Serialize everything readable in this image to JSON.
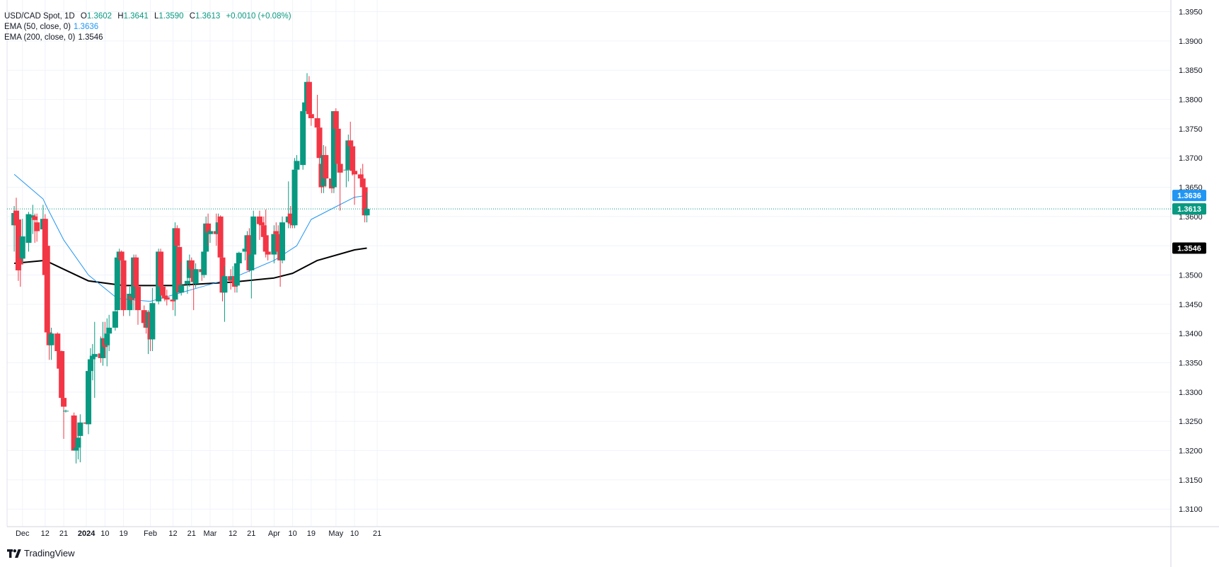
{
  "legend": {
    "symbol": "USD/CAD Spot, 1D",
    "open_label": "O",
    "open": "1.3602",
    "high_label": "H",
    "high": "1.3641",
    "low_label": "L",
    "low": "1.3590",
    "close_label": "C",
    "close": "1.3613",
    "change": "+0.0010 (+0.08%)",
    "ema50_label": "EMA (50, close, 0)",
    "ema50_value": "1.3636",
    "ema200_label": "EMA (200, close, 0)",
    "ema200_value": "1.3546"
  },
  "brand": {
    "name": "TradingView"
  },
  "colors": {
    "up": "#089981",
    "down": "#f23645",
    "ema50": "#2196f3",
    "ema200": "#000000",
    "grid": "#f0f3fa",
    "text": "#131722",
    "last_price_line": "#089981"
  },
  "chart_data": {
    "type": "candlestick",
    "symbol": "USD/CAD Spot",
    "interval": "1D",
    "ylim": [
      1.307,
      1.397
    ],
    "y_ticks": [
      "1.3100",
      "1.3150",
      "1.3200",
      "1.3250",
      "1.3300",
      "1.3350",
      "1.3400",
      "1.3450",
      "1.3500",
      "1.3550",
      "1.3600",
      "1.3650",
      "1.3700",
      "1.3750",
      "1.3800",
      "1.3850",
      "1.3900",
      "1.3950"
    ],
    "x_ticks": [
      {
        "label": "Dec",
        "date": "2023-12-01"
      },
      {
        "label": "12",
        "date": "2023-12-12"
      },
      {
        "label": "21",
        "date": "2023-12-21"
      },
      {
        "label": "2024",
        "date": "2024-01-01",
        "bold": true
      },
      {
        "label": "10",
        "date": "2024-01-10"
      },
      {
        "label": "19",
        "date": "2024-01-19"
      },
      {
        "label": "Feb",
        "date": "2024-02-01"
      },
      {
        "label": "12",
        "date": "2024-02-12"
      },
      {
        "label": "21",
        "date": "2024-02-21"
      },
      {
        "label": "Mar",
        "date": "2024-03-01"
      },
      {
        "label": "12",
        "date": "2024-03-12"
      },
      {
        "label": "21",
        "date": "2024-03-21"
      },
      {
        "label": "Apr",
        "date": "2024-04-01"
      },
      {
        "label": "10",
        "date": "2024-04-10"
      },
      {
        "label": "19",
        "date": "2024-04-19"
      },
      {
        "label": "May",
        "date": "2024-05-01"
      },
      {
        "label": "10",
        "date": "2024-05-10"
      },
      {
        "label": "21",
        "date": "2024-05-21"
      }
    ],
    "price_badges": [
      {
        "label": "1.3636",
        "value": 1.3636,
        "color": "#2196f3"
      },
      {
        "label": "1.3613",
        "value": 1.3613,
        "color": "#089981"
      },
      {
        "label": "1.3546",
        "value": 1.3546,
        "color": "#000000"
      }
    ],
    "last_price": 1.3613,
    "candles": [
      {
        "d": "2023-11-27",
        "o": 1.3585,
        "h": 1.3618,
        "l": 1.354,
        "c": 1.3606
      },
      {
        "d": "2023-11-28",
        "o": 1.361,
        "h": 1.3632,
        "l": 1.3555,
        "c": 1.3585
      },
      {
        "d": "2023-11-29",
        "o": 1.3595,
        "h": 1.3601,
        "l": 1.349,
        "c": 1.3508
      },
      {
        "d": "2023-11-30",
        "o": 1.3545,
        "h": 1.356,
        "l": 1.348,
        "c": 1.3518
      },
      {
        "d": "2023-12-01",
        "o": 1.3528,
        "h": 1.3596,
        "l": 1.352,
        "c": 1.3566
      },
      {
        "d": "2023-12-04",
        "o": 1.3555,
        "h": 1.3608,
        "l": 1.354,
        "c": 1.3604
      },
      {
        "d": "2023-12-05",
        "o": 1.36,
        "h": 1.3601,
        "l": 1.3598,
        "c": 1.36
      },
      {
        "d": "2023-12-06",
        "o": 1.3598,
        "h": 1.362,
        "l": 1.357,
        "c": 1.3602
      },
      {
        "d": "2023-12-07",
        "o": 1.36,
        "h": 1.3605,
        "l": 1.3555,
        "c": 1.3594
      },
      {
        "d": "2023-12-08",
        "o": 1.359,
        "h": 1.3605,
        "l": 1.3557,
        "c": 1.3575
      },
      {
        "d": "2023-12-11",
        "o": 1.3578,
        "h": 1.362,
        "l": 1.3565,
        "c": 1.3596
      },
      {
        "d": "2023-12-12",
        "o": 1.3596,
        "h": 1.3604,
        "l": 1.35,
        "c": 1.35
      },
      {
        "d": "2023-12-13",
        "o": 1.355,
        "h": 1.3555,
        "l": 1.339,
        "c": 1.3402
      },
      {
        "d": "2023-12-14",
        "o": 1.3402,
        "h": 1.3415,
        "l": 1.3355,
        "c": 1.338
      },
      {
        "d": "2023-12-15",
        "o": 1.338,
        "h": 1.341,
        "l": 1.3355,
        "c": 1.34
      },
      {
        "d": "2023-12-18",
        "o": 1.34,
        "h": 1.3402,
        "l": 1.3345,
        "c": 1.337
      },
      {
        "d": "2023-12-19",
        "o": 1.337,
        "h": 1.3375,
        "l": 1.333,
        "c": 1.334
      },
      {
        "d": "2023-12-20",
        "o": 1.337,
        "h": 1.3371,
        "l": 1.328,
        "c": 1.329
      },
      {
        "d": "2023-12-21",
        "o": 1.329,
        "h": 1.3295,
        "l": 1.322,
        "c": 1.3275
      },
      {
        "d": "2023-12-22",
        "o": 1.3268,
        "h": 1.327,
        "l": 1.3265,
        "c": 1.3268
      },
      {
        "d": "2023-12-26",
        "o": 1.326,
        "h": 1.3265,
        "l": 1.32,
        "c": 1.32
      },
      {
        "d": "2023-12-27",
        "o": 1.32,
        "h": 1.3215,
        "l": 1.3178,
        "c": 1.3205
      },
      {
        "d": "2023-12-28",
        "o": 1.3205,
        "h": 1.323,
        "l": 1.3185,
        "c": 1.3222
      },
      {
        "d": "2023-12-29",
        "o": 1.3225,
        "h": 1.3262,
        "l": 1.318,
        "c": 1.3248
      },
      {
        "d": "2024-01-01",
        "o": 1.3248,
        "h": 1.325,
        "l": 1.3245,
        "c": 1.3246
      },
      {
        "d": "2024-01-02",
        "o": 1.3245,
        "h": 1.334,
        "l": 1.3228,
        "c": 1.3336
      },
      {
        "d": "2024-01-03",
        "o": 1.3336,
        "h": 1.3375,
        "l": 1.332,
        "c": 1.3356
      },
      {
        "d": "2024-01-04",
        "o": 1.3356,
        "h": 1.3382,
        "l": 1.332,
        "c": 1.3362
      },
      {
        "d": "2024-01-05",
        "o": 1.336,
        "h": 1.342,
        "l": 1.329,
        "c": 1.3365
      },
      {
        "d": "2024-01-08",
        "o": 1.3366,
        "h": 1.3395,
        "l": 1.335,
        "c": 1.3358
      },
      {
        "d": "2024-01-09",
        "o": 1.3358,
        "h": 1.342,
        "l": 1.3345,
        "c": 1.3392
      },
      {
        "d": "2024-01-10",
        "o": 1.3392,
        "h": 1.342,
        "l": 1.336,
        "c": 1.3377
      },
      {
        "d": "2024-01-11",
        "o": 1.338,
        "h": 1.3426,
        "l": 1.3344,
        "c": 1.34
      },
      {
        "d": "2024-01-12",
        "o": 1.34,
        "h": 1.3432,
        "l": 1.337,
        "c": 1.341
      },
      {
        "d": "2024-01-15",
        "o": 1.341,
        "h": 1.3455,
        "l": 1.3405,
        "c": 1.3438
      },
      {
        "d": "2024-01-16",
        "o": 1.344,
        "h": 1.354,
        "l": 1.343,
        "c": 1.353
      },
      {
        "d": "2024-01-17",
        "o": 1.353,
        "h": 1.3545,
        "l": 1.3495,
        "c": 1.354
      },
      {
        "d": "2024-01-18",
        "o": 1.354,
        "h": 1.3542,
        "l": 1.349,
        "c": 1.3525
      },
      {
        "d": "2024-01-19",
        "o": 1.3525,
        "h": 1.3538,
        "l": 1.343,
        "c": 1.344
      },
      {
        "d": "2024-01-22",
        "o": 1.344,
        "h": 1.348,
        "l": 1.343,
        "c": 1.3468
      },
      {
        "d": "2024-01-23",
        "o": 1.3465,
        "h": 1.3488,
        "l": 1.345,
        "c": 1.3458
      },
      {
        "d": "2024-01-24",
        "o": 1.346,
        "h": 1.3535,
        "l": 1.344,
        "c": 1.353
      },
      {
        "d": "2024-01-25",
        "o": 1.353,
        "h": 1.3535,
        "l": 1.3465,
        "c": 1.348
      },
      {
        "d": "2024-01-26",
        "o": 1.348,
        "h": 1.3485,
        "l": 1.3415,
        "c": 1.344
      },
      {
        "d": "2024-01-29",
        "o": 1.344,
        "h": 1.3448,
        "l": 1.341,
        "c": 1.3418
      },
      {
        "d": "2024-01-30",
        "o": 1.3418,
        "h": 1.342,
        "l": 1.34,
        "c": 1.341
      },
      {
        "d": "2024-01-31",
        "o": 1.341,
        "h": 1.344,
        "l": 1.3365,
        "c": 1.3437
      },
      {
        "d": "2024-02-01",
        "o": 1.3437,
        "h": 1.3442,
        "l": 1.337,
        "c": 1.339
      },
      {
        "d": "2024-02-02",
        "o": 1.339,
        "h": 1.3478,
        "l": 1.337,
        "c": 1.3452
      },
      {
        "d": "2024-02-05",
        "o": 1.3455,
        "h": 1.3545,
        "l": 1.345,
        "c": 1.354
      },
      {
        "d": "2024-02-06",
        "o": 1.354,
        "h": 1.3545,
        "l": 1.3465,
        "c": 1.348
      },
      {
        "d": "2024-02-07",
        "o": 1.348,
        "h": 1.3485,
        "l": 1.346,
        "c": 1.3465
      },
      {
        "d": "2024-02-08",
        "o": 1.3465,
        "h": 1.348,
        "l": 1.3455,
        "c": 1.346
      },
      {
        "d": "2024-02-09",
        "o": 1.3462,
        "h": 1.3475,
        "l": 1.3448,
        "c": 1.3458
      },
      {
        "d": "2024-02-12",
        "o": 1.3458,
        "h": 1.347,
        "l": 1.344,
        "c": 1.3455
      },
      {
        "d": "2024-02-13",
        "o": 1.3458,
        "h": 1.359,
        "l": 1.343,
        "c": 1.358
      },
      {
        "d": "2024-02-14",
        "o": 1.358,
        "h": 1.3585,
        "l": 1.3525,
        "c": 1.355
      },
      {
        "d": "2024-02-15",
        "o": 1.3548,
        "h": 1.3552,
        "l": 1.347,
        "c": 1.347
      },
      {
        "d": "2024-02-16",
        "o": 1.347,
        "h": 1.3522,
        "l": 1.3465,
        "c": 1.3483
      },
      {
        "d": "2024-02-19",
        "o": 1.3485,
        "h": 1.3505,
        "l": 1.3468,
        "c": 1.349
      },
      {
        "d": "2024-02-20",
        "o": 1.3495,
        "h": 1.3535,
        "l": 1.348,
        "c": 1.3525
      },
      {
        "d": "2024-02-21",
        "o": 1.3525,
        "h": 1.353,
        "l": 1.3495,
        "c": 1.351
      },
      {
        "d": "2024-02-22",
        "o": 1.351,
        "h": 1.3525,
        "l": 1.344,
        "c": 1.3488
      },
      {
        "d": "2024-02-23",
        "o": 1.3485,
        "h": 1.352,
        "l": 1.3478,
        "c": 1.351
      },
      {
        "d": "2024-02-26",
        "o": 1.351,
        "h": 1.3512,
        "l": 1.349,
        "c": 1.3505
      },
      {
        "d": "2024-02-27",
        "o": 1.35,
        "h": 1.3545,
        "l": 1.3495,
        "c": 1.354
      },
      {
        "d": "2024-02-28",
        "o": 1.354,
        "h": 1.36,
        "l": 1.3535,
        "c": 1.3588
      },
      {
        "d": "2024-02-29",
        "o": 1.3588,
        "h": 1.3605,
        "l": 1.355,
        "c": 1.3572
      },
      {
        "d": "2024-03-01",
        "o": 1.357,
        "h": 1.358,
        "l": 1.3555,
        "c": 1.3575
      },
      {
        "d": "2024-03-04",
        "o": 1.3575,
        "h": 1.3605,
        "l": 1.355,
        "c": 1.357
      },
      {
        "d": "2024-03-05",
        "o": 1.357,
        "h": 1.3605,
        "l": 1.356,
        "c": 1.359
      },
      {
        "d": "2024-03-06",
        "o": 1.36,
        "h": 1.3602,
        "l": 1.353,
        "c": 1.353
      },
      {
        "d": "2024-03-07",
        "o": 1.353,
        "h": 1.3538,
        "l": 1.3455,
        "c": 1.347
      },
      {
        "d": "2024-03-08",
        "o": 1.347,
        "h": 1.3515,
        "l": 1.342,
        "c": 1.3498
      },
      {
        "d": "2024-03-11",
        "o": 1.3498,
        "h": 1.351,
        "l": 1.3475,
        "c": 1.349
      },
      {
        "d": "2024-03-12",
        "o": 1.3492,
        "h": 1.3515,
        "l": 1.348,
        "c": 1.3498
      },
      {
        "d": "2024-03-13",
        "o": 1.3498,
        "h": 1.3515,
        "l": 1.347,
        "c": 1.348
      },
      {
        "d": "2024-03-14",
        "o": 1.3482,
        "h": 1.3535,
        "l": 1.347,
        "c": 1.352
      },
      {
        "d": "2024-03-15",
        "o": 1.352,
        "h": 1.354,
        "l": 1.351,
        "c": 1.3538
      },
      {
        "d": "2024-03-18",
        "o": 1.354,
        "h": 1.3555,
        "l": 1.3525,
        "c": 1.3545
      },
      {
        "d": "2024-03-19",
        "o": 1.3545,
        "h": 1.3575,
        "l": 1.3535,
        "c": 1.3568
      },
      {
        "d": "2024-03-20",
        "o": 1.3568,
        "h": 1.358,
        "l": 1.3505,
        "c": 1.3508
      },
      {
        "d": "2024-03-21",
        "o": 1.3508,
        "h": 1.354,
        "l": 1.346,
        "c": 1.3535
      },
      {
        "d": "2024-03-22",
        "o": 1.3535,
        "h": 1.361,
        "l": 1.3525,
        "c": 1.36
      },
      {
        "d": "2024-03-25",
        "o": 1.36,
        "h": 1.361,
        "l": 1.356,
        "c": 1.3587
      },
      {
        "d": "2024-03-26",
        "o": 1.359,
        "h": 1.3595,
        "l": 1.357,
        "c": 1.3585
      },
      {
        "d": "2024-03-27",
        "o": 1.3585,
        "h": 1.36,
        "l": 1.3545,
        "c": 1.3565
      },
      {
        "d": "2024-03-28",
        "o": 1.3568,
        "h": 1.3612,
        "l": 1.353,
        "c": 1.354
      },
      {
        "d": "2024-03-29",
        "o": 1.354,
        "h": 1.356,
        "l": 1.3525,
        "c": 1.3535
      },
      {
        "d": "2024-04-01",
        "o": 1.3535,
        "h": 1.3585,
        "l": 1.352,
        "c": 1.357
      },
      {
        "d": "2024-04-02",
        "o": 1.3575,
        "h": 1.359,
        "l": 1.356,
        "c": 1.357
      },
      {
        "d": "2024-04-03",
        "o": 1.357,
        "h": 1.3585,
        "l": 1.353,
        "c": 1.354
      },
      {
        "d": "2024-04-04",
        "o": 1.3545,
        "h": 1.3565,
        "l": 1.348,
        "c": 1.3525
      },
      {
        "d": "2024-04-05",
        "o": 1.3525,
        "h": 1.36,
        "l": 1.352,
        "c": 1.359
      },
      {
        "d": "2024-04-08",
        "o": 1.359,
        "h": 1.366,
        "l": 1.358,
        "c": 1.36
      },
      {
        "d": "2024-04-09",
        "o": 1.3605,
        "h": 1.3618,
        "l": 1.358,
        "c": 1.3588
      },
      {
        "d": "2024-04-10",
        "o": 1.359,
        "h": 1.3605,
        "l": 1.358,
        "c": 1.3585
      },
      {
        "d": "2024-04-11",
        "o": 1.3585,
        "h": 1.37,
        "l": 1.358,
        "c": 1.368
      },
      {
        "d": "2024-04-12",
        "o": 1.368,
        "h": 1.3705,
        "l": 1.3675,
        "c": 1.3695
      },
      {
        "d": "2024-04-15",
        "o": 1.3688,
        "h": 1.379,
        "l": 1.368,
        "c": 1.378
      },
      {
        "d": "2024-04-16",
        "o": 1.378,
        "h": 1.3795,
        "l": 1.374,
        "c": 1.3795
      },
      {
        "d": "2024-04-17",
        "o": 1.379,
        "h": 1.3845,
        "l": 1.378,
        "c": 1.383
      },
      {
        "d": "2024-04-18",
        "o": 1.383,
        "h": 1.384,
        "l": 1.3768,
        "c": 1.3775
      },
      {
        "d": "2024-04-19",
        "o": 1.3775,
        "h": 1.379,
        "l": 1.3755,
        "c": 1.3768
      },
      {
        "d": "2024-04-22",
        "o": 1.3768,
        "h": 1.3808,
        "l": 1.374,
        "c": 1.3752
      },
      {
        "d": "2024-04-23",
        "o": 1.3752,
        "h": 1.3755,
        "l": 1.3685,
        "c": 1.37
      },
      {
        "d": "2024-04-24",
        "o": 1.369,
        "h": 1.3698,
        "l": 1.364,
        "c": 1.365
      },
      {
        "d": "2024-04-25",
        "o": 1.3652,
        "h": 1.3722,
        "l": 1.364,
        "c": 1.3705
      },
      {
        "d": "2024-04-26",
        "o": 1.3705,
        "h": 1.372,
        "l": 1.365,
        "c": 1.3665
      },
      {
        "d": "2024-04-29",
        "o": 1.3665,
        "h": 1.3675,
        "l": 1.364,
        "c": 1.3648
      },
      {
        "d": "2024-04-30",
        "o": 1.365,
        "h": 1.378,
        "l": 1.364,
        "c": 1.378
      },
      {
        "d": "2024-05-01",
        "o": 1.378,
        "h": 1.3785,
        "l": 1.371,
        "c": 1.375
      },
      {
        "d": "2024-05-02",
        "o": 1.375,
        "h": 1.3752,
        "l": 1.368,
        "c": 1.369
      },
      {
        "d": "2024-05-03",
        "o": 1.369,
        "h": 1.37,
        "l": 1.361,
        "c": 1.3675
      },
      {
        "d": "2024-05-06",
        "o": 1.368,
        "h": 1.37,
        "l": 1.365,
        "c": 1.368
      },
      {
        "d": "2024-05-07",
        "o": 1.368,
        "h": 1.374,
        "l": 1.366,
        "c": 1.373
      },
      {
        "d": "2024-05-08",
        "o": 1.373,
        "h": 1.3762,
        "l": 1.372,
        "c": 1.372
      },
      {
        "d": "2024-05-09",
        "o": 1.372,
        "h": 1.373,
        "l": 1.367,
        "c": 1.3678
      },
      {
        "d": "2024-05-10",
        "o": 1.3678,
        "h": 1.369,
        "l": 1.362,
        "c": 1.3672
      },
      {
        "d": "2024-05-13",
        "o": 1.3672,
        "h": 1.3682,
        "l": 1.365,
        "c": 1.3665
      },
      {
        "d": "2024-05-14",
        "o": 1.3665,
        "h": 1.369,
        "l": 1.3635,
        "c": 1.365
      },
      {
        "d": "2024-05-15",
        "o": 1.365,
        "h": 1.3658,
        "l": 1.359,
        "c": 1.3602
      },
      {
        "d": "2024-05-16",
        "o": 1.3602,
        "h": 1.3641,
        "l": 1.359,
        "c": 1.3613
      }
    ],
    "ema50_points": [
      {
        "d": "2023-11-27",
        "v": 1.3672
      },
      {
        "d": "2023-12-11",
        "v": 1.363
      },
      {
        "d": "2023-12-13",
        "v": 1.3615
      },
      {
        "d": "2023-12-21",
        "v": 1.356
      },
      {
        "d": "2024-01-02",
        "v": 1.35
      },
      {
        "d": "2024-01-16",
        "v": 1.346
      },
      {
        "d": "2024-02-01",
        "v": 1.3455
      },
      {
        "d": "2024-02-21",
        "v": 1.3475
      },
      {
        "d": "2024-03-12",
        "v": 1.3495
      },
      {
        "d": "2024-04-01",
        "v": 1.3525
      },
      {
        "d": "2024-04-12",
        "v": 1.355
      },
      {
        "d": "2024-04-19",
        "v": 1.3595
      },
      {
        "d": "2024-04-30",
        "v": 1.3615
      },
      {
        "d": "2024-05-10",
        "v": 1.3633
      },
      {
        "d": "2024-05-16",
        "v": 1.3636
      }
    ],
    "ema200_points": [
      {
        "d": "2023-11-27",
        "v": 1.352
      },
      {
        "d": "2023-12-12",
        "v": 1.3525
      },
      {
        "d": "2023-12-21",
        "v": 1.351
      },
      {
        "d": "2024-01-02",
        "v": 1.349
      },
      {
        "d": "2024-01-19",
        "v": 1.3482
      },
      {
        "d": "2024-02-12",
        "v": 1.3482
      },
      {
        "d": "2024-03-12",
        "v": 1.3488
      },
      {
        "d": "2024-04-01",
        "v": 1.3495
      },
      {
        "d": "2024-04-10",
        "v": 1.3503
      },
      {
        "d": "2024-04-22",
        "v": 1.3525
      },
      {
        "d": "2024-05-10",
        "v": 1.3543
      },
      {
        "d": "2024-05-16",
        "v": 1.3546
      }
    ]
  }
}
